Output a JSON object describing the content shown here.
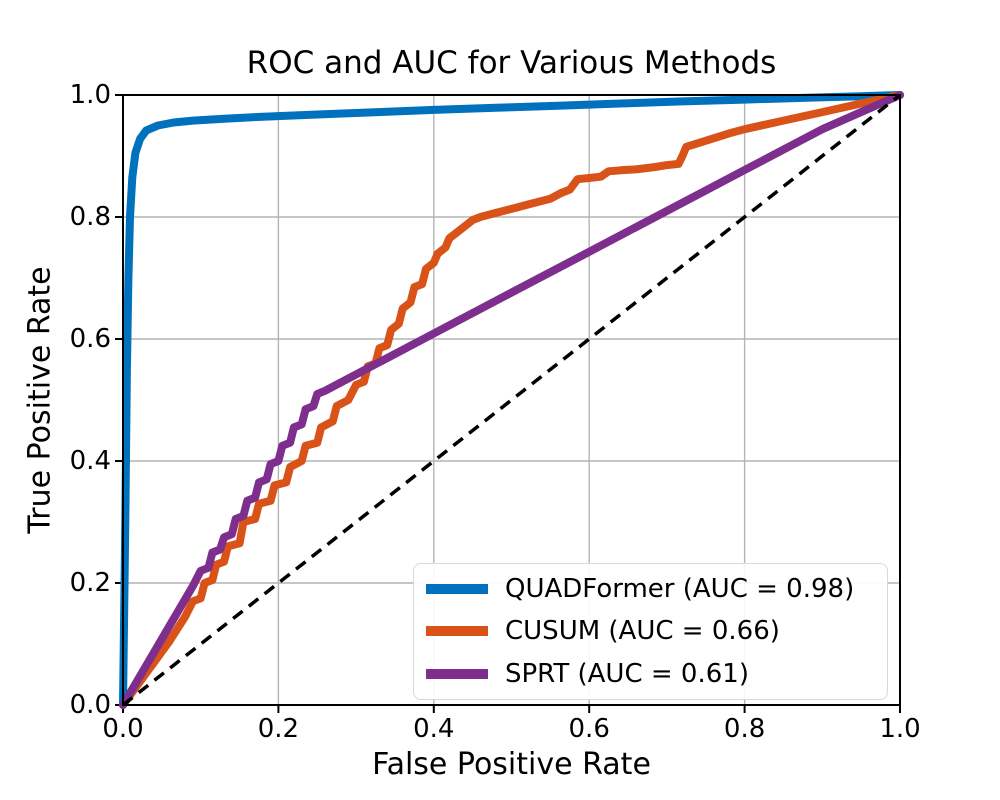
{
  "chart_data": {
    "type": "line",
    "title": "ROC and AUC for Various Methods",
    "xlabel": "False Positive Rate",
    "ylabel": "True Positive Rate",
    "xlim": [
      0.0,
      1.0
    ],
    "ylim": [
      0.0,
      1.0
    ],
    "x_ticks": [
      "0.0",
      "0.2",
      "0.4",
      "0.6",
      "0.8",
      "1.0"
    ],
    "y_ticks": [
      "0.0",
      "0.2",
      "0.4",
      "0.6",
      "0.8",
      "1.0"
    ],
    "grid": true,
    "legend_position": "lower right",
    "series": [
      {
        "name": "QUADFormer",
        "auc": 0.98,
        "label": "QUADFormer (AUC = 0.98)",
        "color": "#0072BD",
        "points": [
          [
            0,
            0
          ],
          [
            0.003,
            0.3
          ],
          [
            0.005,
            0.55
          ],
          [
            0.007,
            0.7
          ],
          [
            0.009,
            0.8
          ],
          [
            0.012,
            0.865
          ],
          [
            0.016,
            0.905
          ],
          [
            0.022,
            0.928
          ],
          [
            0.03,
            0.942
          ],
          [
            0.045,
            0.95
          ],
          [
            0.065,
            0.955
          ],
          [
            0.09,
            0.958
          ],
          [
            0.13,
            0.961
          ],
          [
            0.18,
            0.9645
          ],
          [
            0.25,
            0.968
          ],
          [
            0.32,
            0.9715
          ],
          [
            0.4,
            0.9755
          ],
          [
            0.48,
            0.979
          ],
          [
            0.56,
            0.9825
          ],
          [
            0.64,
            0.986
          ],
          [
            0.72,
            0.9895
          ],
          [
            0.8,
            0.9925
          ],
          [
            0.88,
            0.9955
          ],
          [
            0.95,
            0.998
          ],
          [
            1,
            1
          ]
        ]
      },
      {
        "name": "CUSUM",
        "auc": 0.66,
        "label": "CUSUM (AUC = 0.66)",
        "color": "#D95319",
        "points": [
          [
            0,
            0
          ],
          [
            0.02,
            0.035
          ],
          [
            0.04,
            0.07
          ],
          [
            0.06,
            0.105
          ],
          [
            0.08,
            0.145
          ],
          [
            0.09,
            0.17
          ],
          [
            0.1,
            0.175
          ],
          [
            0.105,
            0.2
          ],
          [
            0.115,
            0.205
          ],
          [
            0.12,
            0.23
          ],
          [
            0.13,
            0.235
          ],
          [
            0.135,
            0.26
          ],
          [
            0.15,
            0.265
          ],
          [
            0.155,
            0.3
          ],
          [
            0.17,
            0.305
          ],
          [
            0.175,
            0.33
          ],
          [
            0.19,
            0.335
          ],
          [
            0.195,
            0.36
          ],
          [
            0.21,
            0.365
          ],
          [
            0.215,
            0.39
          ],
          [
            0.23,
            0.4
          ],
          [
            0.235,
            0.425
          ],
          [
            0.25,
            0.43
          ],
          [
            0.255,
            0.455
          ],
          [
            0.27,
            0.465
          ],
          [
            0.275,
            0.49
          ],
          [
            0.29,
            0.5
          ],
          [
            0.3,
            0.525
          ],
          [
            0.31,
            0.53
          ],
          [
            0.315,
            0.555
          ],
          [
            0.325,
            0.56
          ],
          [
            0.33,
            0.585
          ],
          [
            0.34,
            0.59
          ],
          [
            0.345,
            0.615
          ],
          [
            0.355,
            0.625
          ],
          [
            0.36,
            0.65
          ],
          [
            0.37,
            0.66
          ],
          [
            0.375,
            0.685
          ],
          [
            0.385,
            0.69
          ],
          [
            0.39,
            0.715
          ],
          [
            0.4,
            0.725
          ],
          [
            0.405,
            0.74
          ],
          [
            0.415,
            0.75
          ],
          [
            0.42,
            0.765
          ],
          [
            0.43,
            0.775
          ],
          [
            0.44,
            0.785
          ],
          [
            0.45,
            0.795
          ],
          [
            0.46,
            0.8
          ],
          [
            0.475,
            0.805
          ],
          [
            0.49,
            0.81
          ],
          [
            0.505,
            0.815
          ],
          [
            0.52,
            0.82
          ],
          [
            0.535,
            0.825
          ],
          [
            0.55,
            0.83
          ],
          [
            0.565,
            0.84
          ],
          [
            0.575,
            0.845
          ],
          [
            0.585,
            0.862
          ],
          [
            0.6,
            0.864
          ],
          [
            0.615,
            0.866
          ],
          [
            0.625,
            0.875
          ],
          [
            0.645,
            0.877
          ],
          [
            0.66,
            0.878
          ],
          [
            0.685,
            0.882
          ],
          [
            0.7,
            0.885
          ],
          [
            0.715,
            0.887
          ],
          [
            0.72,
            0.9
          ],
          [
            0.725,
            0.915
          ],
          [
            0.74,
            0.921
          ],
          [
            0.76,
            0.929
          ],
          [
            0.78,
            0.937
          ],
          [
            0.8,
            0.944
          ],
          [
            0.85,
            0.958
          ],
          [
            0.9,
            0.972
          ],
          [
            0.95,
            0.986
          ],
          [
            1,
            1
          ]
        ]
      },
      {
        "name": "SPRT",
        "auc": 0.61,
        "label": "SPRT (AUC = 0.61)",
        "color": "#7E2F8E",
        "points": [
          [
            0,
            0
          ],
          [
            0.03,
            0.065
          ],
          [
            0.06,
            0.13
          ],
          [
            0.09,
            0.195
          ],
          [
            0.1,
            0.22
          ],
          [
            0.11,
            0.225
          ],
          [
            0.115,
            0.25
          ],
          [
            0.125,
            0.255
          ],
          [
            0.13,
            0.275
          ],
          [
            0.14,
            0.28
          ],
          [
            0.145,
            0.305
          ],
          [
            0.155,
            0.31
          ],
          [
            0.16,
            0.335
          ],
          [
            0.17,
            0.34
          ],
          [
            0.175,
            0.365
          ],
          [
            0.185,
            0.37
          ],
          [
            0.19,
            0.395
          ],
          [
            0.2,
            0.4
          ],
          [
            0.205,
            0.425
          ],
          [
            0.215,
            0.43
          ],
          [
            0.22,
            0.455
          ],
          [
            0.23,
            0.46
          ],
          [
            0.235,
            0.485
          ],
          [
            0.245,
            0.49
          ],
          [
            0.25,
            0.51
          ],
          [
            0.26,
            0.515
          ],
          [
            0.3,
            0.542
          ],
          [
            0.4,
            0.609
          ],
          [
            0.5,
            0.676
          ],
          [
            0.6,
            0.743
          ],
          [
            0.7,
            0.81
          ],
          [
            0.8,
            0.877
          ],
          [
            0.9,
            0.944
          ],
          [
            1,
            1
          ]
        ]
      }
    ],
    "reference_line": {
      "name": "chance-diagonal",
      "style": "dashed",
      "color": "#000000",
      "points": [
        [
          0,
          0
        ],
        [
          1,
          1
        ]
      ]
    }
  },
  "style_colors": {
    "grid": "#b4b4b4",
    "spine": "#000000",
    "tick": "#000000",
    "legend_border": "#d9d9d9",
    "background": "#ffffff"
  }
}
